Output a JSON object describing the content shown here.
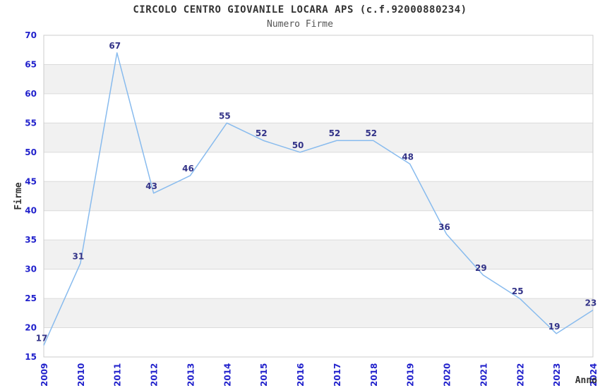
{
  "chart_data": {
    "type": "line",
    "title": "CIRCOLO CENTRO GIOVANILE LOCARA APS (c.f.92000880234)",
    "subtitle": "Numero Firme",
    "xlabel": "Anno",
    "ylabel": "Firme",
    "categories": [
      "2009",
      "2010",
      "2011",
      "2012",
      "2013",
      "2014",
      "2015",
      "2016",
      "2017",
      "2018",
      "2019",
      "2020",
      "2021",
      "2022",
      "2023",
      "2024"
    ],
    "values": [
      17,
      31,
      67,
      43,
      46,
      55,
      52,
      50,
      52,
      52,
      48,
      36,
      29,
      25,
      19,
      23
    ],
    "ylim": [
      15,
      70
    ],
    "yticks": [
      15,
      20,
      25,
      30,
      35,
      40,
      45,
      50,
      55,
      60,
      65,
      70
    ],
    "band_ranges": [
      [
        20,
        25
      ],
      [
        30,
        35
      ],
      [
        40,
        45
      ],
      [
        50,
        55
      ],
      [
        60,
        65
      ]
    ],
    "grid": true,
    "legend": "none",
    "colors": {
      "line": "#88BBEE",
      "point_label": "#333388",
      "tick_label": "#2222CC",
      "axis_label": "#333333",
      "title": "#333333",
      "subtitle": "#555555",
      "band": "#F1F1F1",
      "gridline": "#DBDBDB",
      "plot_border": "#CCCCCC",
      "background": "#FFFFFF"
    }
  }
}
